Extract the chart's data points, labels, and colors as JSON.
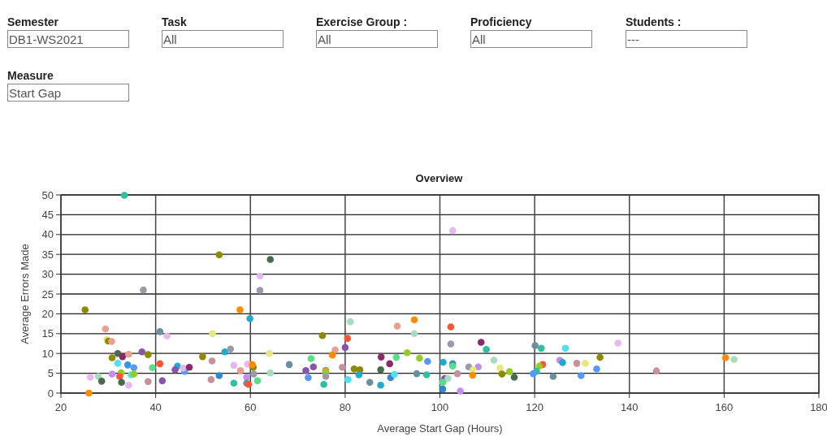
{
  "chart_data": {
    "type": "scatter",
    "title": "Overview",
    "xlabel": "Average Start Gap (Hours)",
    "ylabel": "Average Errors Made",
    "annotations": [
      "Semester",
      "DB1-WS2021",
      "Task",
      "All",
      "Exercise Group :",
      "All",
      "Proficiency",
      "All",
      "Students :",
      "---",
      "Measure",
      "Start Gap"
    ],
    "xlim": [
      20,
      180
    ],
    "xticks": [
      20,
      40,
      60,
      80,
      100,
      120,
      140,
      160,
      180
    ],
    "ylim": [
      0,
      50
    ],
    "yticks": [
      0,
      5,
      10,
      15,
      20,
      25,
      30,
      35,
      40,
      45,
      50
    ],
    "grid": true,
    "marker": "circle",
    "x": [
      25.1,
      29.4,
      29.7,
      30.0,
      30.7,
      32.0,
      30.8,
      33.0,
      34.3,
      32.0,
      34.1,
      35.4,
      26.2,
      27.9,
      28.6,
      30.8,
      32.7,
      32.4,
      34.8,
      35.4,
      32.8,
      34.3,
      25.9,
      37.1,
      38.4,
      39.3,
      38.4,
      40.9,
      42.4,
      40.9,
      41.4,
      44.6,
      44.1,
      46.1,
      45.8,
      47.1,
      49.9,
      51.9,
      52.0,
      57.8,
      59.9,
      51.7,
      53.4,
      54.6,
      55.8,
      56.5,
      57.9,
      59.4,
      59.2,
      56.5,
      59.2,
      59.6,
      33.4,
      37.4,
      53.4,
      64.2,
      62.0,
      62.0,
      102.7,
      60.6,
      60.4,
      60.7,
      61.5,
      64.0,
      64.2,
      68.2,
      72.8,
      71.7,
      73.3,
      72.2,
      75.2,
      75.9,
      75.9,
      75.9,
      75.5,
      77.9,
      77.3,
      80.5,
      80.0,
      79.4,
      81.1,
      80.6,
      81.9,
      83.1,
      82.9,
      85.2,
      87.6,
      87.5,
      87.5,
      89.4,
      89.6,
      90.4,
      90.8,
      91.0,
      93.1,
      94.6,
      94.6,
      95.7,
      95.1,
      97.4,
      97.2,
      102.3,
      102.3,
      100.7,
      102.7,
      102.7,
      106.1,
      108.1,
      107.0,
      103.7,
      106.9,
      101.0,
      101.7,
      100.6,
      100.6,
      104.3,
      108.7,
      109.8,
      111.4,
      112.7,
      113.1,
      114.7,
      115.7,
      120.1,
      121.4,
      121.7,
      121.0,
      120.4,
      119.7,
      123.9,
      125.3,
      125.9,
      126.5,
      128.9,
      130.7,
      129.8,
      133.1,
      133.8,
      137.6,
      145.7,
      160.3,
      162.1
    ],
    "values": [
      21.0,
      16.2,
      13.5,
      13.1,
      13.0,
      10.0,
      8.9,
      9.2,
      9.8,
      7.5,
      7.1,
      6.4,
      4.0,
      4.2,
      3.0,
      4.8,
      5.1,
      4.2,
      4.6,
      4.8,
      2.7,
      2.0,
      0.0,
      10.4,
      9.7,
      6.4,
      2.9,
      15.5,
      14.4,
      7.4,
      3.1,
      6.8,
      5.9,
      5.5,
      6.3,
      6.5,
      9.2,
      8.1,
      15.0,
      21.0,
      18.8,
      3.4,
      4.4,
      10.4,
      11.1,
      7.0,
      5.7,
      7.3,
      4.0,
      2.5,
      2.5,
      2.2,
      49.9,
      26.0,
      34.9,
      33.7,
      29.5,
      25.9,
      41.0,
      6.5,
      7.2,
      4.8,
      3.1,
      10.0,
      5.1,
      7.2,
      8.7,
      5.7,
      6.6,
      3.9,
      14.5,
      5.7,
      5.4,
      4.2,
      2.2,
      10.9,
      9.6,
      13.8,
      11.5,
      6.5,
      18.0,
      3.4,
      6.1,
      5.9,
      4.6,
      2.7,
      9.1,
      5.9,
      2.0,
      7.4,
      3.9,
      4.7,
      9.0,
      16.9,
      10.2,
      18.5,
      15.0,
      8.8,
      4.9,
      8.0,
      4.6,
      16.7,
      12.4,
      7.8,
      7.4,
      6.8,
      6.6,
      6.6,
      5.9,
      4.9,
      4.5,
      3.7,
      3.7,
      2.7,
      1.0,
      0.5,
      12.8,
      11.0,
      8.3,
      6.3,
      4.8,
      5.4,
      4.0,
      12.0,
      11.3,
      7.2,
      6.8,
      5.5,
      4.9,
      4.2,
      8.3,
      7.7,
      11.3,
      7.5,
      7.5,
      4.4,
      6.1,
      9.0,
      12.6,
      5.6,
      8.9,
      8.5
    ],
    "colors": [
      "#8b8b00",
      "#e8a090",
      "#e8e880",
      "#8b8b00",
      "#e8a090",
      "#4a6a50",
      "#8b8b00",
      "#8b2a6a",
      "#e8a090",
      "#50e0f0",
      "#3399dd",
      "#5599ff",
      "#e6b8f0",
      "#a8dcc0",
      "#4a6a50",
      "#c08ff0",
      "#99cc22",
      "#ff5533",
      "#50e0f0",
      "#99cc22",
      "#4a6a50",
      "#e6b8f0",
      "#ff8c00",
      "#8855aa",
      "#8b8b00",
      "#55e088",
      "#c8909a",
      "#6a90a0",
      "#e6b8f0",
      "#ff5533",
      "#8855aa",
      "#20aacc",
      "#8855aa",
      "#5599ff",
      "#e6b8f0",
      "#8b2a6a",
      "#8b8b00",
      "#c8909a",
      "#e8e880",
      "#ff8c00",
      "#20aacc",
      "#c8909a",
      "#3388cc",
      "#20aacc",
      "#9a9aaa",
      "#e6b8f0",
      "#e8a090",
      "#e6b8f0",
      "#c08ff0",
      "#30c0a0",
      "#6a90a0",
      "#ff5533",
      "#30c0a0",
      "#9a9aaa",
      "#8b8b00",
      "#4a6a50",
      "#e6b8f0",
      "#9a9aaa",
      "#e6b8f0",
      "#8b8b00",
      "#ff8c00",
      "#9a9aaa",
      "#55e088",
      "#e8e880",
      "#a8dcc0",
      "#6a90a0",
      "#55e088",
      "#8855aa",
      "#8855aa",
      "#5599ff",
      "#8b8b00",
      "#ff5533",
      "#99cc22",
      "#9a9aaa",
      "#30c0a0",
      "#e8a090",
      "#ff8c00",
      "#ff5533",
      "#8855aa",
      "#c8909a",
      "#a8dcc0",
      "#50e0f0",
      "#8b8b00",
      "#8b8b00",
      "#20aacc",
      "#6a90a0",
      "#8b2a6a",
      "#4a6a50",
      "#20aacc",
      "#8b2a6a",
      "#3388cc",
      "#50e0f0",
      "#55e088",
      "#e8a090",
      "#99cc22",
      "#ff8c00",
      "#a8dcc0",
      "#99cc22",
      "#6a90a0",
      "#5599ff",
      "#30c0a0",
      "#ff5533",
      "#9a9aaa",
      "#20aacc",
      "#3388cc",
      "#55e088",
      "#9a9aaa",
      "#c08ff0",
      "#e8e880",
      "#c8909a",
      "#ff8c00",
      "#8855aa",
      "#a8dcc0",
      "#55e088",
      "#3388cc",
      "#c08ff0",
      "#8b2a6a",
      "#30c0a0",
      "#a8dcc0",
      "#e8e880",
      "#8b8b00",
      "#99cc22",
      "#4a6a50",
      "#6a90a0",
      "#30c0a0",
      "#ff5533",
      "#99cc22",
      "#30c0a0",
      "#5599ff",
      "#6a90a0",
      "#c08ff0",
      "#20aacc",
      "#50e0f0",
      "#c8909a",
      "#e8e880",
      "#5599ff",
      "#5599ff",
      "#8b8b00",
      "#e6b8f0",
      "#c8909a",
      "#ff8c00",
      "#a8dcc0"
    ]
  }
}
